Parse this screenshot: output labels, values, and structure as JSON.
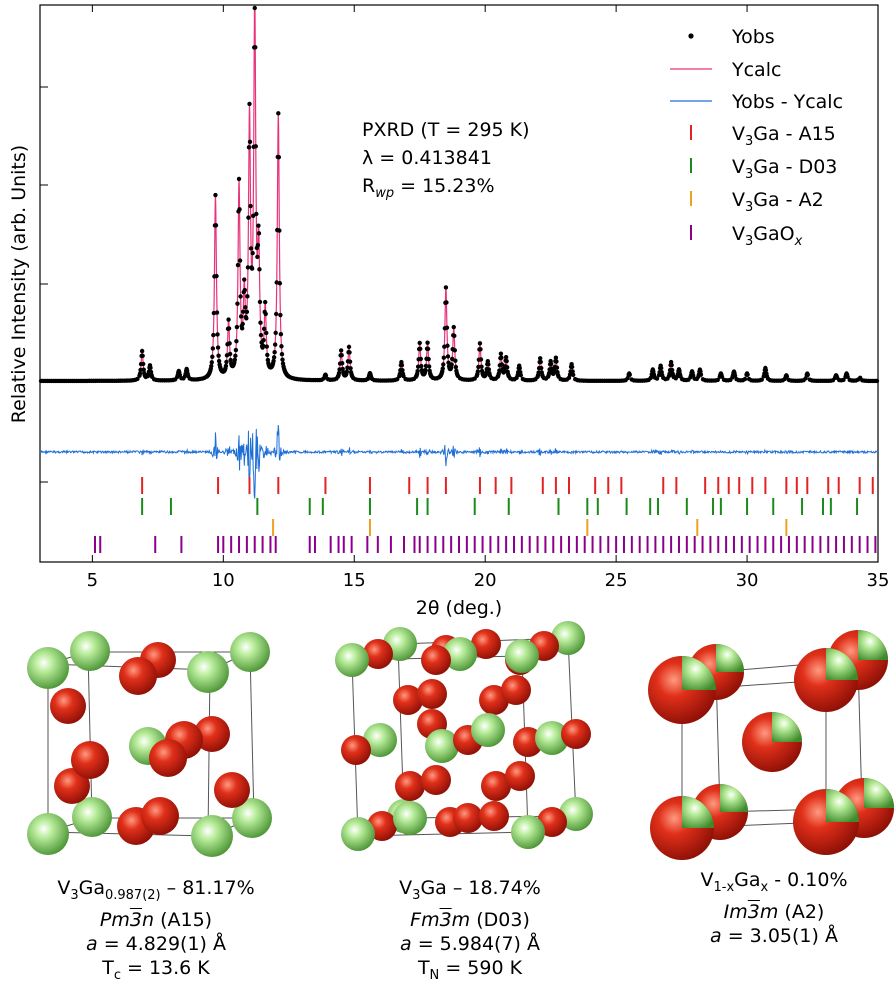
{
  "chart_data": {
    "type": "line",
    "xlabel": "2θ (deg.)",
    "ylabel": "Relative Intensity (arb. Units)",
    "xlim": [
      3,
      35
    ],
    "xticks": [
      5,
      10,
      15,
      20,
      25,
      30,
      35
    ],
    "grid": false,
    "legend_position": "top-right",
    "annotation": {
      "line1": "PXRD (T = 295 K)",
      "line2": "λ = 0.413841",
      "line3": "R",
      "line3_sub": "wp",
      "line3_rest": " = 15.23%"
    },
    "legend": [
      {
        "label": "Yobs",
        "marker": "dot"
      },
      {
        "label": "Ycalc",
        "marker": "line"
      },
      {
        "label": "Yobs - Ycalc",
        "marker": "line"
      },
      {
        "label_a": "V",
        "label_sub": "3",
        "label_b": "Ga - A15",
        "marker": "tick"
      },
      {
        "label_a": "V",
        "label_sub": "3",
        "label_b": "Ga - D03",
        "marker": "tick"
      },
      {
        "label_a": "V",
        "label_sub": "3",
        "label_b": "Ga - A2",
        "marker": "tick"
      },
      {
        "label_a": "V",
        "label_sub": "3",
        "label_b": "GaO",
        "label_sub2": "x",
        "marker": "tick"
      }
    ],
    "peaks": [
      [
        6.9,
        0.08
      ],
      [
        7.2,
        0.04
      ],
      [
        8.3,
        0.025
      ],
      [
        8.6,
        0.03
      ],
      [
        9.7,
        0.5
      ],
      [
        10.2,
        0.15
      ],
      [
        10.6,
        0.52
      ],
      [
        10.8,
        0.2
      ],
      [
        11.0,
        0.68
      ],
      [
        11.2,
        1.0
      ],
      [
        11.35,
        0.32
      ],
      [
        11.6,
        0.18
      ],
      [
        12.1,
        0.72
      ],
      [
        13.9,
        0.015
      ],
      [
        14.5,
        0.08
      ],
      [
        14.8,
        0.09
      ],
      [
        15.6,
        0.02
      ],
      [
        16.8,
        0.05
      ],
      [
        17.5,
        0.1
      ],
      [
        17.8,
        0.1
      ],
      [
        18.5,
        0.25
      ],
      [
        18.8,
        0.14
      ],
      [
        19.8,
        0.1
      ],
      [
        20.1,
        0.05
      ],
      [
        20.6,
        0.07
      ],
      [
        20.8,
        0.06
      ],
      [
        21.3,
        0.04
      ],
      [
        22.1,
        0.06
      ],
      [
        22.5,
        0.05
      ],
      [
        22.7,
        0.06
      ],
      [
        23.3,
        0.045
      ],
      [
        25.5,
        0.02
      ],
      [
        26.4,
        0.03
      ],
      [
        26.7,
        0.04
      ],
      [
        27.1,
        0.05
      ],
      [
        27.4,
        0.03
      ],
      [
        27.9,
        0.025
      ],
      [
        28.2,
        0.03
      ],
      [
        29.0,
        0.02
      ],
      [
        29.5,
        0.025
      ],
      [
        30.0,
        0.02
      ],
      [
        30.7,
        0.035
      ],
      [
        31.5,
        0.015
      ],
      [
        32.3,
        0.02
      ],
      [
        33.4,
        0.015
      ],
      [
        33.8,
        0.02
      ],
      [
        34.3,
        0.01
      ]
    ],
    "series": [
      {
        "name": "V3Ga - A15",
        "color": "#e32323",
        "ticks": [
          6.9,
          9.8,
          11.0,
          12.1,
          13.9,
          15.6,
          17.1,
          17.8,
          18.5,
          19.8,
          20.4,
          21.0,
          22.2,
          22.7,
          23.2,
          24.2,
          24.7,
          25.2,
          26.8,
          27.3,
          28.4,
          28.9,
          29.3,
          29.7,
          30.2,
          30.7,
          31.5,
          31.9,
          32.3,
          33.1,
          33.5,
          34.3,
          34.8
        ]
      },
      {
        "name": "V3Ga - D03",
        "color": "#1a8a1a",
        "ticks": [
          6.9,
          8.0,
          11.3,
          13.3,
          13.8,
          15.6,
          17.4,
          17.8,
          19.6,
          20.9,
          22.8,
          23.9,
          24.3,
          25.4,
          26.3,
          26.6,
          27.7,
          28.7,
          29.0,
          30.0,
          31.0,
          32.1,
          32.9,
          33.2,
          34.2
        ]
      },
      {
        "name": "V3Ga - A2",
        "color": "#f0a020",
        "ticks": [
          11.9,
          15.6,
          23.9,
          28.1,
          31.5
        ]
      },
      {
        "name": "V3GaOx",
        "color": "#8b008b",
        "ticks": [
          5.1,
          5.3,
          7.4,
          8.4,
          9.8,
          10.0,
          10.3,
          10.6,
          10.9,
          11.2,
          11.5,
          11.8,
          12.0,
          13.3,
          13.5,
          14.1,
          14.4,
          14.6,
          14.9,
          15.5,
          15.9,
          16.4,
          16.9,
          17.3,
          17.5,
          17.8,
          18.1,
          18.4,
          18.7,
          19.0,
          19.3,
          19.6,
          19.9,
          20.2,
          20.5,
          20.8,
          21.1,
          21.4,
          21.7,
          22.0,
          22.3,
          22.6,
          22.9,
          23.2,
          23.5,
          23.8,
          24.1,
          24.4,
          24.7,
          25.0,
          25.3,
          25.6,
          25.9,
          26.2,
          26.5,
          26.8,
          27.1,
          27.4,
          27.7,
          28.0,
          28.3,
          28.6,
          28.9,
          29.2,
          29.5,
          29.8,
          30.1,
          30.4,
          30.7,
          31.0,
          31.3,
          31.6,
          31.9,
          32.2,
          32.5,
          32.8,
          33.1,
          33.4,
          33.7,
          34.0,
          34.3,
          34.6,
          34.9
        ]
      }
    ]
  },
  "colors": {
    "yobs": "#000000",
    "ycalc": "#e8337a",
    "diff": "#1f6fd6",
    "atom_red": "#d42a16",
    "atom_green": "#7cc35a"
  },
  "structures": [
    {
      "l1a": "V",
      "l1s": "3",
      "l1b": "Ga",
      "l1s2": "0.987(2)",
      "l1c": " – 81.17%",
      "l2a": "Pm",
      "l2b": "3",
      "l2c": "n",
      "l2d": " (A15)",
      "l3a": "a",
      "l3b": " = 4.829(1) Å",
      "l4a": "T",
      "l4s": "c",
      "l4b": " = 13.6 K"
    },
    {
      "l1a": "V",
      "l1s": "3",
      "l1b": "Ga – 18.74%",
      "l2a": "Fm",
      "l2b": "3",
      "l2c": "m",
      "l2d": " (D03)",
      "l3a": "a",
      "l3b": " = 5.984(7) Å",
      "l4a": "T",
      "l4s": "N",
      "l4b": " = 590 K"
    },
    {
      "l1a": "V",
      "l1s": "1-x",
      "l1b": "Ga",
      "l1s2": "x",
      "l1c": " - 0.10%",
      "l2a": "Im",
      "l2b": "3",
      "l2c": "m",
      "l2d": " (A2)",
      "l3a": "a",
      "l3b": " = 3.05(1) Å"
    }
  ]
}
